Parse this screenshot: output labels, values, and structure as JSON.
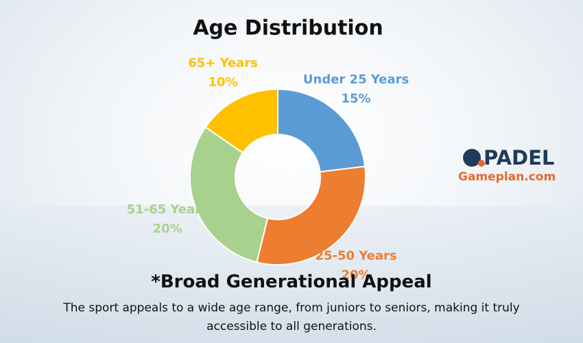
{
  "chart_data": {
    "type": "pie",
    "title": "Age Distribution",
    "categories": [
      "Under 25 Years",
      "25-50 Years",
      "51-65 Years",
      "65+ Years"
    ],
    "values": [
      15,
      20,
      20,
      10
    ],
    "value_labels": [
      "15%",
      "20%",
      "20%",
      "10%"
    ],
    "colors": [
      "#5b9bd5",
      "#ed7d31",
      "#a9d18e",
      "#ffc000"
    ],
    "donut": true
  },
  "logo": {
    "brand": "PADEL",
    "site": "Gameplan.com"
  },
  "note": {
    "heading": "*Broad Generational Appeal",
    "text": "The sport appeals to a wide age range, from juniors to seniors, making it truly accessible to all generations."
  }
}
